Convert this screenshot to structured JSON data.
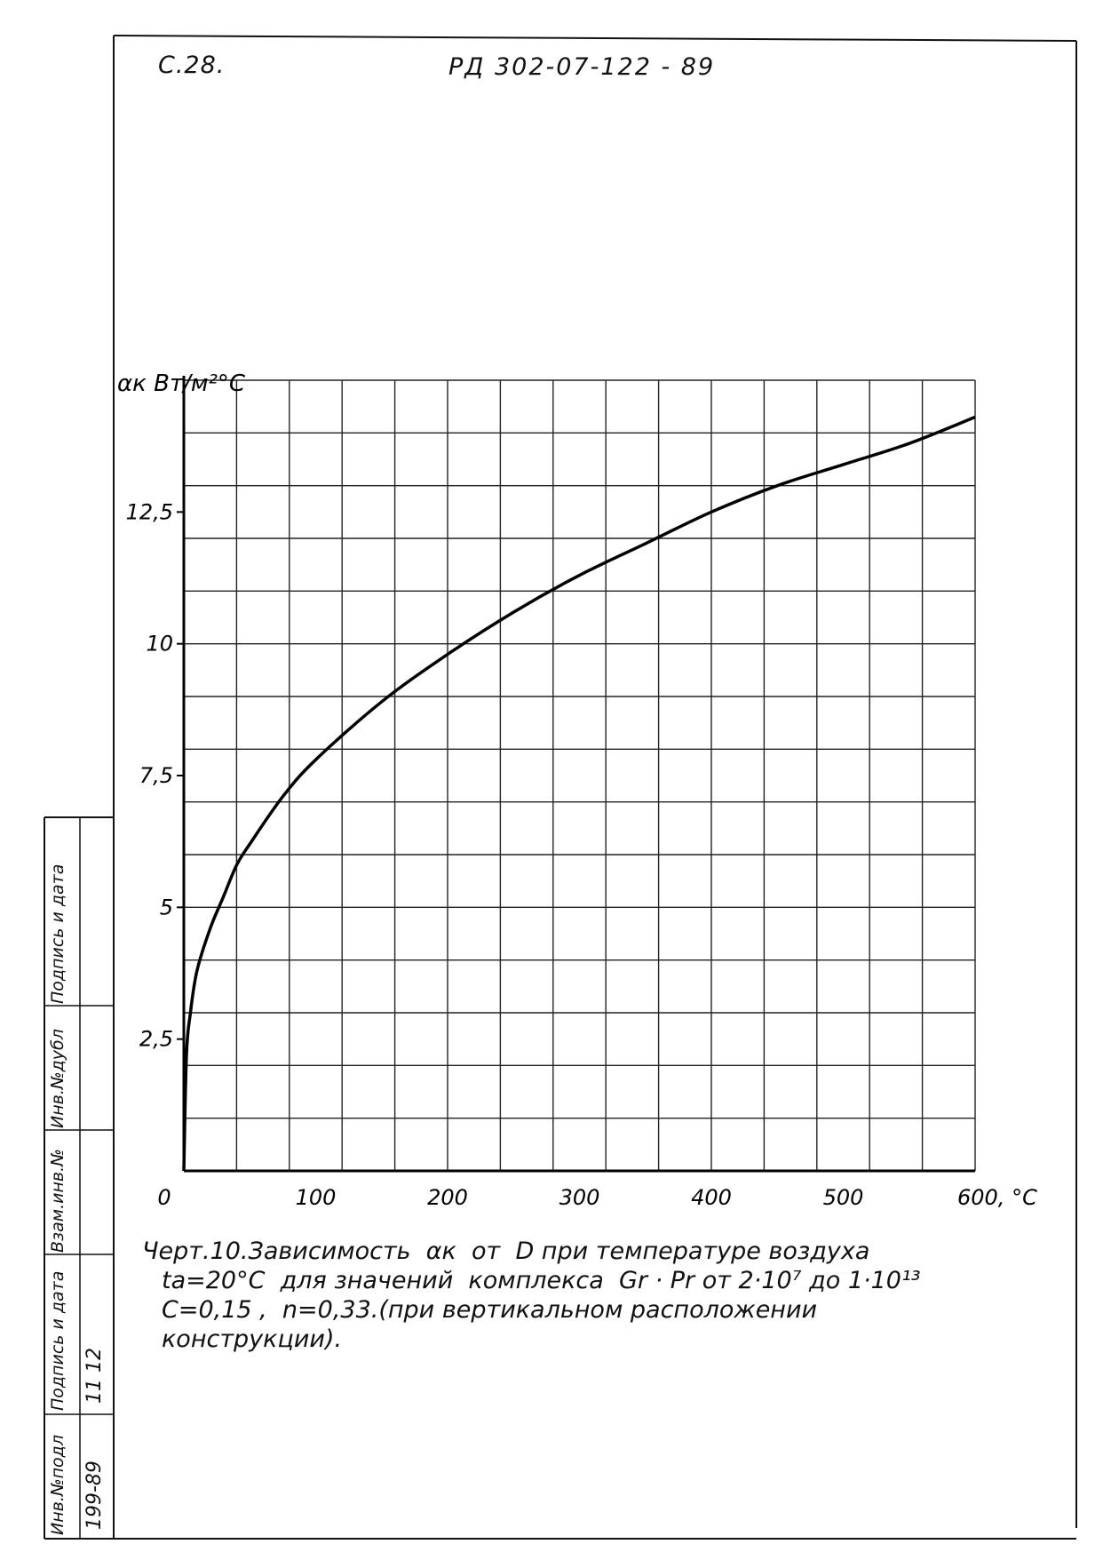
{
  "header": {
    "page": "С.28.",
    "document": "РД 302-07-122 - 89"
  },
  "chart_data": {
    "type": "line",
    "title": "",
    "xlabel": "°C",
    "ylabel": "αк Вт/м²°C",
    "xlim": [
      0,
      600
    ],
    "ylim": [
      0,
      15
    ],
    "x_ticks": [
      0,
      100,
      200,
      300,
      400,
      500,
      600
    ],
    "x_tick_labels": [
      "0",
      "100",
      "200",
      "300",
      "400",
      "500",
      "600, °C"
    ],
    "y_ticks": [
      2.5,
      5,
      7.5,
      10,
      12.5
    ],
    "y_tick_labels": [
      "2,5",
      "5",
      "7,5",
      "10",
      "12,5"
    ],
    "grid": true,
    "series": [
      {
        "name": "",
        "x": [
          0,
          2,
          5,
          10,
          20,
          30,
          40,
          50,
          75,
          100,
          150,
          200,
          250,
          300,
          350,
          400,
          450,
          500,
          550,
          600
        ],
        "y": [
          0,
          2.2,
          3.0,
          3.8,
          4.6,
          5.2,
          5.8,
          6.2,
          7.1,
          7.8,
          8.9,
          9.8,
          10.6,
          11.3,
          11.9,
          12.5,
          13.0,
          13.4,
          13.8,
          14.3
        ]
      }
    ]
  },
  "caption": {
    "line1": "Черт.10.Зависимость  αк  от  D при температуре воздуха",
    "line2": "tа=20°C  для значений  комплекса  Gr · Pr от 2·10⁷ до 1·10¹³",
    "line3": "C=0,15 ,  n=0,33.(при вертикальном расположении",
    "line4": "конструкции)."
  },
  "stamp": {
    "labels": [
      "Инв.№подл",
      "Подпись и дата",
      "Взам.инв.№",
      "Инв.№дубл",
      "Подпись и дата"
    ],
    "inv_number": "199-89",
    "sign_date": "11 12"
  }
}
